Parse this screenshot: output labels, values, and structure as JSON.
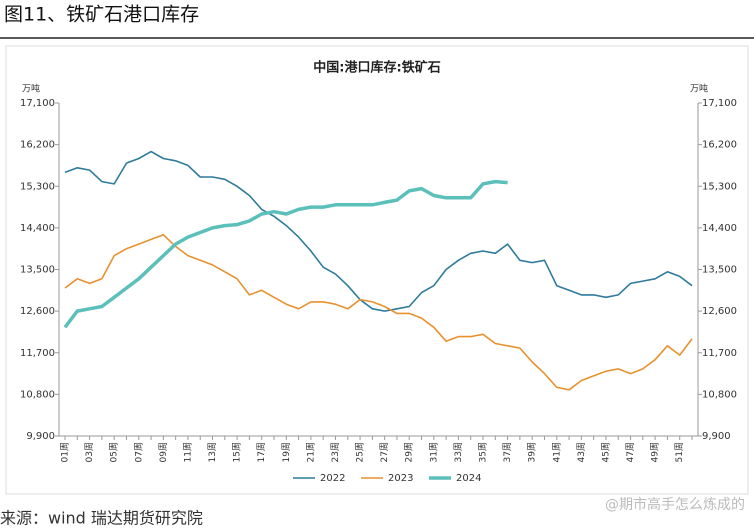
{
  "header": {
    "title": "图11、铁矿石港口库存"
  },
  "chart_data": {
    "type": "line",
    "title": "中国:港口库存:铁矿石",
    "ylabel": "万吨",
    "y2label": "万吨",
    "categories": [
      "01周",
      null,
      "03周",
      null,
      "05周",
      null,
      "07周",
      null,
      "09周",
      null,
      "11周",
      null,
      "13周",
      null,
      "15周",
      null,
      "17周",
      null,
      "19周",
      null,
      "21周",
      null,
      "23周",
      null,
      "25周",
      null,
      "27周",
      null,
      "29周",
      null,
      "31周",
      null,
      "33周",
      null,
      "35周",
      null,
      "37周",
      null,
      "39周",
      null,
      "41周",
      null,
      "43周",
      null,
      "45周",
      null,
      "47周",
      null,
      "49周",
      null,
      "51周",
      null
    ],
    "series": [
      {
        "name": "2022",
        "color": "#2e7b9b",
        "width": 1.6,
        "values": [
          15600,
          15700,
          15650,
          15400,
          15350,
          15800,
          15900,
          16050,
          15900,
          15850,
          15750,
          15500,
          15500,
          15450,
          15300,
          15100,
          14800,
          14650,
          14450,
          14200,
          13900,
          13550,
          13400,
          13150,
          12850,
          12650,
          12600,
          12650,
          12700,
          13000,
          13150,
          13500,
          13700,
          13850,
          13900,
          13850,
          14050,
          13700,
          13650,
          13700,
          13150,
          13050,
          12950,
          12950,
          12900,
          12950,
          13200,
          13250,
          13300,
          13450,
          13350,
          13150
        ]
      },
      {
        "name": "2023",
        "color": "#e8912e",
        "width": 1.6,
        "values": [
          13100,
          13300,
          13200,
          13300,
          13800,
          13950,
          14050,
          14150,
          14250,
          14000,
          13800,
          13700,
          13600,
          13450,
          13300,
          12950,
          13050,
          12900,
          12750,
          12650,
          12800,
          12800,
          12750,
          12650,
          12850,
          12800,
          12700,
          12550,
          12550,
          12450,
          12250,
          11950,
          12050,
          12050,
          12100,
          11900,
          11850,
          11800,
          11500,
          11250,
          10950,
          10900,
          11100,
          11200,
          11300,
          11350,
          11250,
          11350,
          11550,
          11850,
          11650,
          12000
        ]
      },
      {
        "name": "2024",
        "color": "#5bbfba",
        "width": 3.5,
        "values": [
          12250,
          12600,
          12650,
          12700,
          12900,
          13100,
          13300,
          13550,
          13800,
          14050,
          14200,
          14300,
          14400,
          14450,
          14470,
          14550,
          14700,
          14750,
          14700,
          14800,
          14850,
          14850,
          14900,
          14900,
          14900,
          14900,
          14950,
          15000,
          15200,
          15250,
          15100,
          15050,
          15050,
          15050,
          15350,
          15400,
          15380,
          null,
          null,
          null,
          null,
          null,
          null,
          null,
          null,
          null,
          null,
          null,
          null,
          null,
          null,
          null
        ]
      }
    ],
    "ylim": [
      9900,
      17100
    ],
    "yticks": [
      {
        "value": 9900,
        "label": "9,900"
      },
      {
        "value": 10800,
        "label": "10,800"
      },
      {
        "value": 11700,
        "label": "11,700"
      },
      {
        "value": 12600,
        "label": "12,600"
      },
      {
        "value": 13500,
        "label": "13,500"
      },
      {
        "value": 14400,
        "label": "14,400"
      },
      {
        "value": 15300,
        "label": "15,300"
      },
      {
        "value": 16200,
        "label": "16,200"
      },
      {
        "value": 17100,
        "label": "17,100"
      }
    ],
    "y2lim": [
      9900,
      17100
    ],
    "y2ticks": [
      {
        "value": 9900,
        "label": "9,900"
      },
      {
        "value": 10800,
        "label": "10,800"
      },
      {
        "value": 11700,
        "label": "11,700"
      },
      {
        "value": 12600,
        "label": "12,600"
      },
      {
        "value": 13500,
        "label": "13,500"
      },
      {
        "value": 14400,
        "label": "14,400"
      },
      {
        "value": 15300,
        "label": "15,300"
      },
      {
        "value": 16200,
        "label": "16,200"
      },
      {
        "value": 17100,
        "label": "17,100"
      }
    ],
    "grid": false,
    "legend": "bottom"
  },
  "footer": {
    "source": "来源：wind   瑞达期货研究院",
    "watermark": "@期市高手怎么炼成的"
  }
}
